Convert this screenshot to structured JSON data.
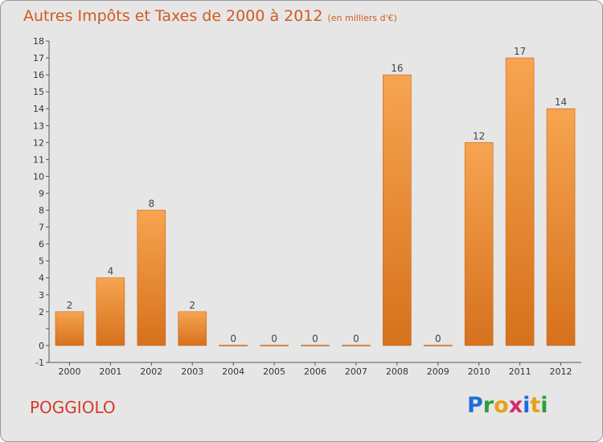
{
  "title": {
    "main": "Autres Impôts et Taxes de 2000 à 2012",
    "unit": "(en milliers d'€)"
  },
  "location": "POGGIOLO",
  "logo": {
    "text": "Proxiti",
    "colors": [
      "#1e6fd8",
      "#2e9d3a",
      "#e8a018",
      "#d62c6b",
      "#1e6fd8",
      "#e8a018",
      "#2e9d3a"
    ]
  },
  "colors": {
    "accent": "#d25a1f",
    "bar_top": "#f7a450",
    "bar_bottom": "#d6711c",
    "background": "#e6e6e6"
  },
  "chart_data": {
    "type": "bar",
    "categories": [
      "2000",
      "2001",
      "2002",
      "2003",
      "2004",
      "2005",
      "2006",
      "2007",
      "2008",
      "2009",
      "2010",
      "2011",
      "2012"
    ],
    "values": [
      2,
      4,
      8,
      2,
      0,
      0,
      0,
      0,
      16,
      0,
      12,
      17,
      14
    ],
    "data_labels": [
      "2",
      "4",
      "8",
      "2",
      "0",
      "0",
      "0",
      "0",
      "16",
      "0",
      "12",
      "17",
      "14"
    ],
    "title": "Autres Impôts et Taxes de 2000 à 2012",
    "xlabel": "",
    "ylabel": "",
    "ylim": [
      -1,
      18
    ],
    "yticks": [
      -1,
      0,
      1,
      2,
      3,
      4,
      5,
      6,
      7,
      8,
      9,
      10,
      11,
      12,
      13,
      14,
      15,
      16,
      17,
      18
    ],
    "ytick_labels": [
      "-1",
      "0",
      "",
      "2",
      "3",
      "4",
      "5",
      "6",
      "7",
      "8",
      "9",
      "10",
      "11",
      "12",
      "13",
      "14",
      "15",
      "16",
      "17",
      "18"
    ],
    "grid": false
  }
}
